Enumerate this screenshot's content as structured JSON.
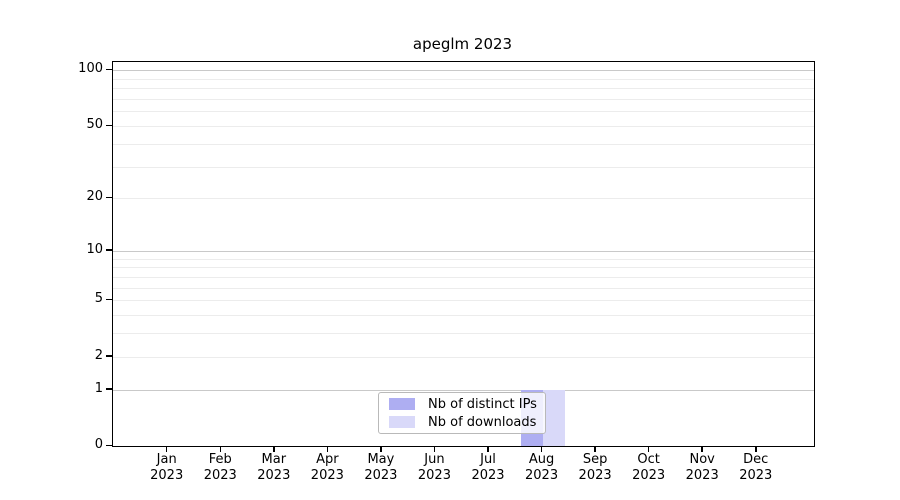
{
  "title": "apeglm 2023",
  "chart_data": {
    "type": "bar",
    "title": "apeglm 2023",
    "categories": [
      "Jan",
      "Feb",
      "Mar",
      "Apr",
      "May",
      "Jun",
      "Jul",
      "Aug",
      "Sep",
      "Oct",
      "Nov",
      "Dec"
    ],
    "x_year_label": "2023",
    "series": [
      {
        "name": "Nb of distinct IPs",
        "color": "#aeaef2",
        "values": [
          0,
          0,
          0,
          0,
          0,
          0,
          0,
          1,
          0,
          0,
          0,
          0
        ]
      },
      {
        "name": "Nb of downloads",
        "color": "#d9d9f9",
        "values": [
          0,
          0,
          0,
          0,
          0,
          0,
          0,
          1,
          0,
          0,
          0,
          0
        ]
      }
    ],
    "yscale": "log1p",
    "ylim": [
      0,
      111
    ],
    "yticks": [
      0,
      1,
      2,
      5,
      10,
      20,
      50,
      100
    ],
    "grid": {
      "major_values": [
        1,
        10,
        100
      ],
      "minor_values": [
        2,
        3,
        4,
        5,
        6,
        7,
        8,
        9,
        20,
        30,
        40,
        50,
        60,
        70,
        80,
        90
      ],
      "major_color": "#c9c9c9",
      "minor_color": "#ececec"
    },
    "legend_position": "lower center inside",
    "axis_color": "#000000",
    "background": "#ffffff"
  }
}
